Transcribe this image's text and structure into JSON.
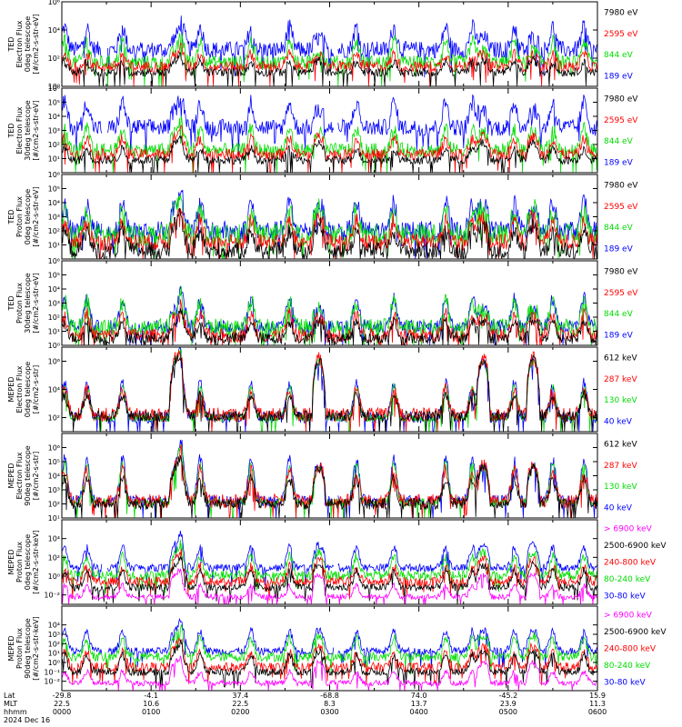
{
  "colors": {
    "blue": "#0000ff",
    "red": "#ff0000",
    "green": "#00dd00",
    "black": "#000000",
    "magenta": "#ff00ff"
  },
  "panels": [
    {
      "id": "ted-e-0",
      "ylabel": [
        "TED",
        "Electron Flux",
        "0deg telescope",
        "[#/cm2-s-str-eV]"
      ],
      "ymin": 0,
      "ymax": 6,
      "ticks": [
        {
          "v": 0,
          "t": "10⁰"
        },
        {
          "v": 2,
          "t": "10²"
        },
        {
          "v": 4,
          "t": "10⁴"
        },
        {
          "v": 6,
          "t": "10⁶"
        }
      ],
      "legend": [
        {
          "label": "7980 eV",
          "color": "black"
        },
        {
          "label": "2595 eV",
          "color": "red"
        },
        {
          "label": "844 eV",
          "color": "green"
        },
        {
          "label": "189 eV",
          "color": "blue"
        }
      ]
    },
    {
      "id": "ted-e-30",
      "ylabel": [
        "TED",
        "Electron Flux",
        "30deg telescope",
        "[#/cm2-s-str-eV]"
      ],
      "ymin": 0,
      "ymax": 6,
      "ticks": [
        {
          "v": 1,
          "t": "10¹"
        },
        {
          "v": 2,
          "t": "10²"
        },
        {
          "v": 3,
          "t": "10³"
        },
        {
          "v": 4,
          "t": "10⁴"
        },
        {
          "v": 5,
          "t": "10⁵"
        },
        {
          "v": 6,
          "t": "10⁶"
        }
      ],
      "legend": [
        {
          "label": "7980 eV",
          "color": "black"
        },
        {
          "label": "2595 eV",
          "color": "red"
        },
        {
          "label": "844 eV",
          "color": "green"
        },
        {
          "label": "189 eV",
          "color": "blue"
        }
      ]
    },
    {
      "id": "ted-p-0",
      "ylabel": [
        "TED",
        "Proton Flux",
        "0deg telescope",
        "[#/cm2-s-str-eV]"
      ],
      "ymin": 0,
      "ymax": 6,
      "ticks": [
        {
          "v": 1,
          "t": "10¹"
        },
        {
          "v": 2,
          "t": "10²"
        },
        {
          "v": 3,
          "t": "10³"
        },
        {
          "v": 4,
          "t": "10⁴"
        },
        {
          "v": 5,
          "t": "10⁵"
        },
        {
          "v": 6,
          "t": "10⁶"
        }
      ],
      "legend": [
        {
          "label": "7980 eV",
          "color": "black"
        },
        {
          "label": "2595 eV",
          "color": "red"
        },
        {
          "label": "844 eV",
          "color": "green"
        },
        {
          "label": "189 eV",
          "color": "blue"
        }
      ]
    },
    {
      "id": "ted-p-30",
      "ylabel": [
        "TED",
        "Proton Flux",
        "30deg telescope",
        "[#/cm2-s-str-eV]"
      ],
      "ymin": 0,
      "ymax": 6,
      "ticks": [
        {
          "v": 0,
          "t": "10⁰"
        },
        {
          "v": 1,
          "t": "10¹"
        },
        {
          "v": 2,
          "t": "10²"
        },
        {
          "v": 3,
          "t": "10³"
        },
        {
          "v": 4,
          "t": "10⁴"
        },
        {
          "v": 5,
          "t": "10⁵"
        },
        {
          "v": 6,
          "t": "10⁶"
        }
      ],
      "legend": [
        {
          "label": "7980 eV",
          "color": "black"
        },
        {
          "label": "2595 eV",
          "color": "red"
        },
        {
          "label": "844 eV",
          "color": "green"
        },
        {
          "label": "189 eV",
          "color": "blue"
        }
      ]
    },
    {
      "id": "meped-e-0",
      "ylabel": [
        "MEPED",
        "Electron Flux",
        "0deg telescope",
        "[#/cm2-s-str]"
      ],
      "ymin": 1,
      "ymax": 7,
      "ticks": [
        {
          "v": 2,
          "t": "10²"
        },
        {
          "v": 4,
          "t": "10⁴"
        },
        {
          "v": 6,
          "t": "10⁶"
        }
      ],
      "legend": [
        {
          "label": "612 keV",
          "color": "black"
        },
        {
          "label": "287 keV",
          "color": "red"
        },
        {
          "label": "130 keV",
          "color": "green"
        },
        {
          "label": "40 keV",
          "color": "blue"
        }
      ]
    },
    {
      "id": "meped-e-90",
      "ylabel": [
        "MEPED",
        "Electron Flux",
        "90deg telescope",
        "[#/cm2-s-str]"
      ],
      "ymin": 1,
      "ymax": 7,
      "ticks": [
        {
          "v": 1,
          "t": "10¹"
        },
        {
          "v": 2,
          "t": "10²"
        },
        {
          "v": 3,
          "t": "10³"
        },
        {
          "v": 4,
          "t": "10⁴"
        },
        {
          "v": 5,
          "t": "10⁵"
        },
        {
          "v": 6,
          "t": "10⁶"
        }
      ],
      "legend": [
        {
          "label": "612 keV",
          "color": "black"
        },
        {
          "label": "287 keV",
          "color": "red"
        },
        {
          "label": "130 keV",
          "color": "green"
        },
        {
          "label": "40 keV",
          "color": "blue"
        }
      ]
    },
    {
      "id": "meped-p-0",
      "ylabel": [
        "MEPED",
        "Proton Flux",
        "0deg telescope",
        "[#/cm2-s-str-keV]"
      ],
      "ymin": -3,
      "ymax": 6,
      "ticks": [
        {
          "v": -2,
          "t": "10⁻²"
        },
        {
          "v": 0,
          "t": "10⁰"
        },
        {
          "v": 2,
          "t": "10²"
        },
        {
          "v": 4,
          "t": "10⁴"
        }
      ],
      "legend": [
        {
          "label": "> 6900 keV",
          "color": "magenta"
        },
        {
          "label": "2500-6900 keV",
          "color": "black"
        },
        {
          "label": "240-800 keV",
          "color": "red"
        },
        {
          "label": "80-240 keV",
          "color": "green"
        },
        {
          "label": "30-80 keV",
          "color": "blue"
        }
      ]
    },
    {
      "id": "meped-p-90",
      "ylabel": [
        "MEPED",
        "Proton Flux",
        "90deg telescope",
        "[#/cm2-s-str-keV]"
      ],
      "ymin": -3,
      "ymax": 6,
      "ticks": [
        {
          "v": -2,
          "t": "10⁻²"
        },
        {
          "v": -1,
          "t": "10⁻¹"
        },
        {
          "v": 0,
          "t": "10⁰"
        },
        {
          "v": 1,
          "t": "10¹"
        },
        {
          "v": 2,
          "t": "10²"
        },
        {
          "v": 3,
          "t": "10³"
        },
        {
          "v": 4,
          "t": "10⁴"
        }
      ],
      "legend": [
        {
          "label": "> 6900 keV",
          "color": "magenta"
        },
        {
          "label": "2500-6900 keV",
          "color": "black"
        },
        {
          "label": "240-800 keV",
          "color": "red"
        },
        {
          "label": "80-240 keV",
          "color": "green"
        },
        {
          "label": "30-80 keV",
          "color": "blue"
        }
      ]
    }
  ],
  "xaxis": {
    "row_labels": [
      "Lat",
      "MLT",
      "hhmm",
      "2024 Dec 16"
    ],
    "ticks": [
      {
        "lat": "-29.8",
        "mlt": "22.5",
        "hhmm": "0000"
      },
      {
        "lat": "-4.1",
        "mlt": "10.6",
        "hhmm": "0100"
      },
      {
        "lat": "37.4",
        "mlt": "22.5",
        "hhmm": "0200"
      },
      {
        "lat": "-68.8",
        "mlt": "8.3",
        "hhmm": "0300"
      },
      {
        "lat": "74.0",
        "mlt": "13.7",
        "hhmm": "0400"
      },
      {
        "lat": "-45.2",
        "mlt": "23.9",
        "hhmm": "0500"
      },
      {
        "lat": "15.9",
        "mlt": "11.3",
        "hhmm": "0600"
      }
    ]
  },
  "chart_data": {
    "type": "line",
    "x_unit": "UTC hhmm, 2024 Dec 16",
    "x_range": [
      "0000",
      "0600"
    ],
    "y_scale": "log",
    "pass_peaks_hours": [
      0.03,
      0.28,
      0.68,
      1.35,
      1.55,
      2.12,
      2.55,
      3.3,
      3.72,
      4.3,
      4.6,
      5.07,
      5.5,
      5.85
    ],
    "radiation_belt_domes_hours": [
      1.28,
      2.88,
      4.72,
      5.28
    ]
  }
}
